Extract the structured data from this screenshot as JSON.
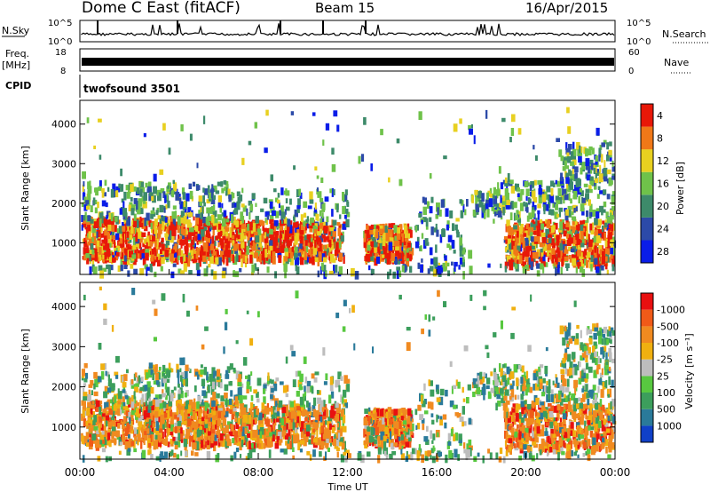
{
  "header": {
    "station": "Dome C East (fitACF)",
    "beam": "Beam 15",
    "date": "16/Apr/2015"
  },
  "noise_panel": {
    "left_label": "N.Sky",
    "left_top_tick": "10^5",
    "left_bottom_tick": "10^0",
    "right_top_tick": "10^5",
    "right_bottom_tick": "10^0",
    "right_label": "N.Search"
  },
  "freq_panel": {
    "left_label_line1": "Freq.",
    "left_label_line2": "[MHz]",
    "left_tick_top": "18",
    "left_tick_bottom": "8",
    "right_tick_top": "60",
    "right_tick_bottom": "0",
    "right_label": "Nave"
  },
  "cpid_panel": {
    "label": "CPID",
    "text": "twofsound 3501"
  },
  "chart_data": [
    {
      "type": "heatmap",
      "ylabel": "Slant Range [km]",
      "y_ticks": [
        "1000",
        "2000",
        "3000",
        "4000"
      ],
      "ylim": [
        200,
        4600
      ],
      "xlim_hours": [
        0,
        24
      ],
      "colorbar_label": "Power [dB]",
      "colorbar_ticks": [
        "4",
        "8",
        "12",
        "16",
        "20",
        "24",
        "28"
      ],
      "colorbar_colors": [
        "#0a1de8",
        "#2c4aa8",
        "#3d8a6a",
        "#6fc24a",
        "#e8d020",
        "#f07818",
        "#e81808"
      ]
    },
    {
      "type": "heatmap",
      "ylabel": "Slant Range [km]",
      "y_ticks": [
        "1000",
        "2000",
        "3000",
        "4000"
      ],
      "ylim": [
        200,
        4600
      ],
      "xlim_hours": [
        0,
        24
      ],
      "colorbar_label": "Velocity [m s⁻¹]",
      "colorbar_ticks": [
        "1000",
        "500",
        "100",
        "25",
        "-25",
        "-100",
        "-500",
        "-1000"
      ],
      "colorbar_colors": [
        "#1040c8",
        "#2a7a9a",
        "#3c9e5c",
        "#58c840",
        "#bdbdbd",
        "#f0b010",
        "#f08a20",
        "#f05a18",
        "#e81010"
      ]
    }
  ],
  "x_axis": {
    "tick_labels": [
      "00:00",
      "04:00",
      "08:00",
      "12:00",
      "16:00",
      "20:00",
      "00:00"
    ],
    "label": "Time UT"
  }
}
